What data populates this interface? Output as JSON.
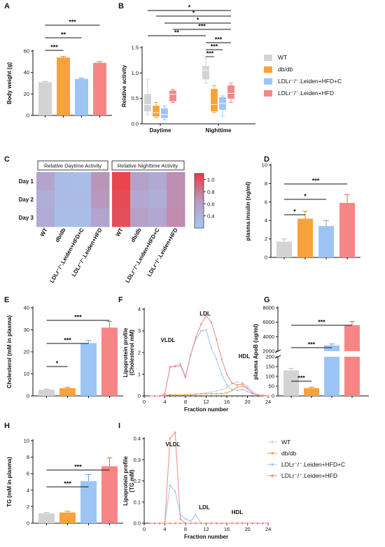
{
  "colors": {
    "WT": "#d3d3d3",
    "dbdb": "#f7a23b",
    "LDLrC": "#9cc5f5",
    "LDLr": "#f78585",
    "axis": "#111111",
    "hm_low": "#a5c8f2",
    "hm_mid": "#b79ac2",
    "hm_high": "#f03a3e"
  },
  "groups": [
    "WT",
    "db/db",
    "LDLr⁻/⁻.Leiden+HFD+C",
    "LDLr⁻/⁻.Leiden+HFD"
  ],
  "legend": {
    "top": [
      "WT",
      "db/db",
      "LDLr⁻/⁻.Leiden+HFD+C",
      "LDLr⁻/⁻.Leiden+HFD"
    ],
    "bottom": [
      "WT",
      "db/db",
      "LDLr⁻/⁻.Leiden+HFD+C",
      "LDLr⁻/⁻.Leiden+HFD"
    ]
  },
  "panels": {
    "A": "A",
    "B": "B",
    "C": "C",
    "D": "D",
    "E": "E",
    "F": "F",
    "G": "G",
    "H": "H",
    "I": "I"
  },
  "chart_data": [
    {
      "panel": "A",
      "type": "bar",
      "ylabel": "Body weight (g)",
      "ylim": [
        0,
        60
      ],
      "yticks": [
        "0",
        "20",
        "40",
        "60"
      ],
      "values": [
        31,
        54,
        34,
        49
      ],
      "errors": [
        0.8,
        1.0,
        0.8,
        1.2
      ],
      "significance": [
        {
          "from": 0,
          "to": 1,
          "label": "***"
        },
        {
          "from": 0,
          "to": 2,
          "label": "**"
        },
        {
          "from": 0,
          "to": 3,
          "label": "***"
        }
      ]
    },
    {
      "panel": "B",
      "type": "box",
      "ylabel": "Relative activity",
      "ylim": [
        0,
        1.5
      ],
      "yticks": [
        "0.0",
        "0.5",
        "1.0",
        "1.5"
      ],
      "categories": [
        "Daytime",
        "Nighttime"
      ],
      "boxes": [
        {
          "cat": 0,
          "g": 0,
          "min": 0.18,
          "q1": 0.25,
          "med": 0.38,
          "q3": 0.58,
          "max": 0.88
        },
        {
          "cat": 0,
          "g": 1,
          "min": 0.12,
          "q1": 0.15,
          "med": 0.22,
          "q3": 0.35,
          "max": 0.42
        },
        {
          "cat": 0,
          "g": 2,
          "min": 0.08,
          "q1": 0.12,
          "med": 0.18,
          "q3": 0.3,
          "max": 0.35
        },
        {
          "cat": 0,
          "g": 3,
          "min": 0.42,
          "q1": 0.45,
          "med": 0.58,
          "q3": 0.65,
          "max": 0.68
        },
        {
          "cat": 1,
          "g": 0,
          "min": 0.8,
          "q1": 0.88,
          "med": 1.05,
          "q3": 1.13,
          "max": 1.32
        },
        {
          "cat": 1,
          "g": 1,
          "min": 0.22,
          "q1": 0.25,
          "med": 0.38,
          "q3": 0.68,
          "max": 0.75
        },
        {
          "cat": 1,
          "g": 2,
          "min": 0.15,
          "q1": 0.28,
          "med": 0.4,
          "q3": 0.52,
          "max": 0.55
        },
        {
          "cat": 1,
          "g": 3,
          "min": 0.42,
          "q1": 0.5,
          "med": 0.6,
          "q3": 0.75,
          "max": 0.8
        }
      ],
      "significance": [
        "*",
        "*",
        "*",
        "***",
        "**",
        "***",
        "***",
        "***"
      ]
    },
    {
      "panel": "C",
      "type": "heatmap",
      "rows": [
        "Day 1",
        "Day 2",
        "Day 3"
      ],
      "blocks": [
        "Relative Daytime Activity",
        "Relative Nighttime Activity"
      ],
      "scale_ticks": [
        "1.0",
        "0.8",
        "0.6",
        "0.4"
      ],
      "scale_range": [
        0.2,
        1.1
      ],
      "values": [
        [
          0.55,
          0.32,
          0.3,
          0.68,
          1.05,
          0.58,
          0.5,
          0.7
        ],
        [
          0.45,
          0.32,
          0.32,
          0.66,
          1.02,
          0.52,
          0.45,
          0.7
        ],
        [
          0.48,
          0.3,
          0.3,
          0.55,
          1.0,
          0.58,
          0.52,
          0.72
        ]
      ]
    },
    {
      "panel": "D",
      "type": "bar",
      "ylabel": "plasma insulin (ng/ml)",
      "ylim": [
        0,
        10
      ],
      "yticks": [
        "0",
        "2",
        "4",
        "6",
        "8",
        "10"
      ],
      "values": [
        1.7,
        4.2,
        3.4,
        5.9
      ],
      "errors": [
        0.3,
        0.8,
        0.6,
        0.9
      ],
      "significance": [
        {
          "from": 0,
          "to": 1,
          "label": "*"
        },
        {
          "from": 0,
          "to": 2,
          "label": "*"
        },
        {
          "from": 0,
          "to": 3,
          "label": "***"
        }
      ]
    },
    {
      "panel": "E",
      "type": "bar",
      "ylabel": "Cholesterol (mM in plasma)",
      "ylim": [
        0,
        40
      ],
      "yticks": [
        "0",
        "10",
        "20",
        "30",
        "40"
      ],
      "values": [
        2.8,
        3.5,
        24,
        31
      ],
      "errors": [
        0.3,
        0.4,
        1.2,
        2.8
      ],
      "significance": [
        {
          "from": 0,
          "to": 1,
          "label": "*"
        },
        {
          "from": 0,
          "to": 2,
          "label": "***"
        },
        {
          "from": 0,
          "to": 3,
          "label": "***"
        }
      ]
    },
    {
      "panel": "F",
      "type": "line",
      "ylabel": "Lipoprotein profile (Cholesterol mM)",
      "xlabel": "Fraction number",
      "ylim": [
        0,
        4
      ],
      "xlim": [
        0,
        24
      ],
      "yticks": [
        "0",
        "1",
        "2",
        "3",
        "4"
      ],
      "xticks": [
        "0",
        "4",
        "8",
        "12",
        "16",
        "20",
        "24"
      ],
      "labels": [
        "VLDL",
        "LDL",
        "HDL"
      ],
      "x": [
        1,
        2,
        3,
        4,
        5,
        6,
        7,
        8,
        9,
        10,
        11,
        12,
        13,
        14,
        15,
        16,
        17,
        18,
        19,
        20,
        21,
        22,
        23,
        24
      ],
      "series": [
        {
          "g": 0,
          "values": [
            0,
            0,
            0,
            0.02,
            0.05,
            0.04,
            0.03,
            0.04,
            0.06,
            0.08,
            0.1,
            0.14,
            0.18,
            0.22,
            0.28,
            0.38,
            0.55,
            0.65,
            0.6,
            0.45,
            0.2,
            0.05,
            0.02,
            0
          ]
        },
        {
          "g": 1,
          "values": [
            0,
            0,
            0,
            0.02,
            0.05,
            0.05,
            0.04,
            0.05,
            0.06,
            0.08,
            0.1,
            0.1,
            0.1,
            0.1,
            0.1,
            0.14,
            0.25,
            0.4,
            0.45,
            0.35,
            0.12,
            0.04,
            0.02,
            0
          ]
        },
        {
          "g": 2,
          "values": [
            0,
            0,
            0,
            0.1,
            1.3,
            1.4,
            1.5,
            0.9,
            1.9,
            2.6,
            3.0,
            3.05,
            2.2,
            1.7,
            1.0,
            0.5,
            0.3,
            0.25,
            0.3,
            0.2,
            0.1,
            0.04,
            0.01,
            0
          ]
        },
        {
          "g": 3,
          "values": [
            0,
            0,
            0,
            0.1,
            1.35,
            1.35,
            1.4,
            0.85,
            1.9,
            2.7,
            3.3,
            3.7,
            3.4,
            2.6,
            1.7,
            1.0,
            0.6,
            0.5,
            0.55,
            0.35,
            0.12,
            0.04,
            0.01,
            0
          ]
        }
      ]
    },
    {
      "panel": "G",
      "type": "bar",
      "ylabel": "plasma ApoB (ug/ml)",
      "broken_axis": true,
      "lower_ylim": [
        0,
        200
      ],
      "lower_yticks": [
        "0",
        "50",
        "100",
        "150",
        "200"
      ],
      "upper_ylim": [
        2000,
        8000
      ],
      "upper_yticks": [
        "2000",
        "4000",
        "6000",
        "8000"
      ],
      "values": [
        130,
        40,
        2800,
        5600
      ],
      "errors": [
        10,
        5,
        200,
        500
      ],
      "significance": [
        {
          "from": 0,
          "to": 1,
          "label": "***"
        },
        {
          "from": 0,
          "to": 2,
          "label": "***"
        },
        {
          "from": 0,
          "to": 3,
          "label": "***"
        }
      ]
    },
    {
      "panel": "H",
      "type": "bar",
      "ylabel": "TG (mM in plasma)",
      "ylim": [
        0,
        10
      ],
      "yticks": [
        "0",
        "2",
        "4",
        "6",
        "8",
        "10"
      ],
      "values": [
        1.2,
        1.3,
        5.1,
        6.9
      ],
      "errors": [
        0.1,
        0.15,
        0.8,
        1.0
      ],
      "significance": [
        {
          "from": 0,
          "to": 2,
          "label": "***"
        },
        {
          "from": 0,
          "to": 3,
          "label": "***"
        }
      ]
    },
    {
      "panel": "I",
      "type": "line",
      "ylabel": "Lipoprotein profile (TG mM)",
      "xlabel": "Fraction number",
      "ylim": [
        0,
        0.4
      ],
      "xlim": [
        0,
        24
      ],
      "yticks": [
        "0.0",
        "0.1",
        "0.2",
        "0.3",
        "0.4"
      ],
      "xticks": [
        "0",
        "4",
        "8",
        "12",
        "16",
        "20",
        "24"
      ],
      "labels": [
        "VLDL",
        "LDL",
        "HDL"
      ],
      "x": [
        1,
        2,
        3,
        4,
        5,
        6,
        7,
        8,
        9,
        10,
        11,
        12,
        13,
        14,
        15,
        16,
        17,
        18,
        19,
        20,
        21,
        22,
        23,
        24
      ],
      "series": [
        {
          "g": 0,
          "values": [
            0,
            0,
            0,
            0,
            0,
            0,
            0,
            0,
            0,
            0,
            0,
            0,
            0,
            0,
            0,
            0,
            0,
            0,
            0,
            0,
            0,
            0,
            0,
            0
          ]
        },
        {
          "g": 1,
          "values": [
            0,
            0,
            0,
            0,
            0,
            0,
            0,
            0,
            0,
            0,
            0,
            0,
            0,
            0,
            0,
            0,
            0,
            0,
            0,
            0,
            0,
            0,
            0,
            0
          ]
        },
        {
          "g": 2,
          "values": [
            0,
            0,
            0,
            0,
            0.18,
            0.15,
            0.04,
            0.02,
            0.01,
            0.04,
            0,
            0,
            0,
            0,
            0,
            0,
            0,
            0,
            0,
            0,
            0,
            0,
            0,
            0
          ]
        },
        {
          "g": 3,
          "values": [
            0,
            0,
            0,
            0,
            0.4,
            0.43,
            0.02,
            0,
            0,
            0,
            0,
            0,
            0,
            0,
            0,
            0,
            0,
            0,
            0,
            0,
            0,
            0,
            0,
            0
          ]
        }
      ]
    }
  ]
}
